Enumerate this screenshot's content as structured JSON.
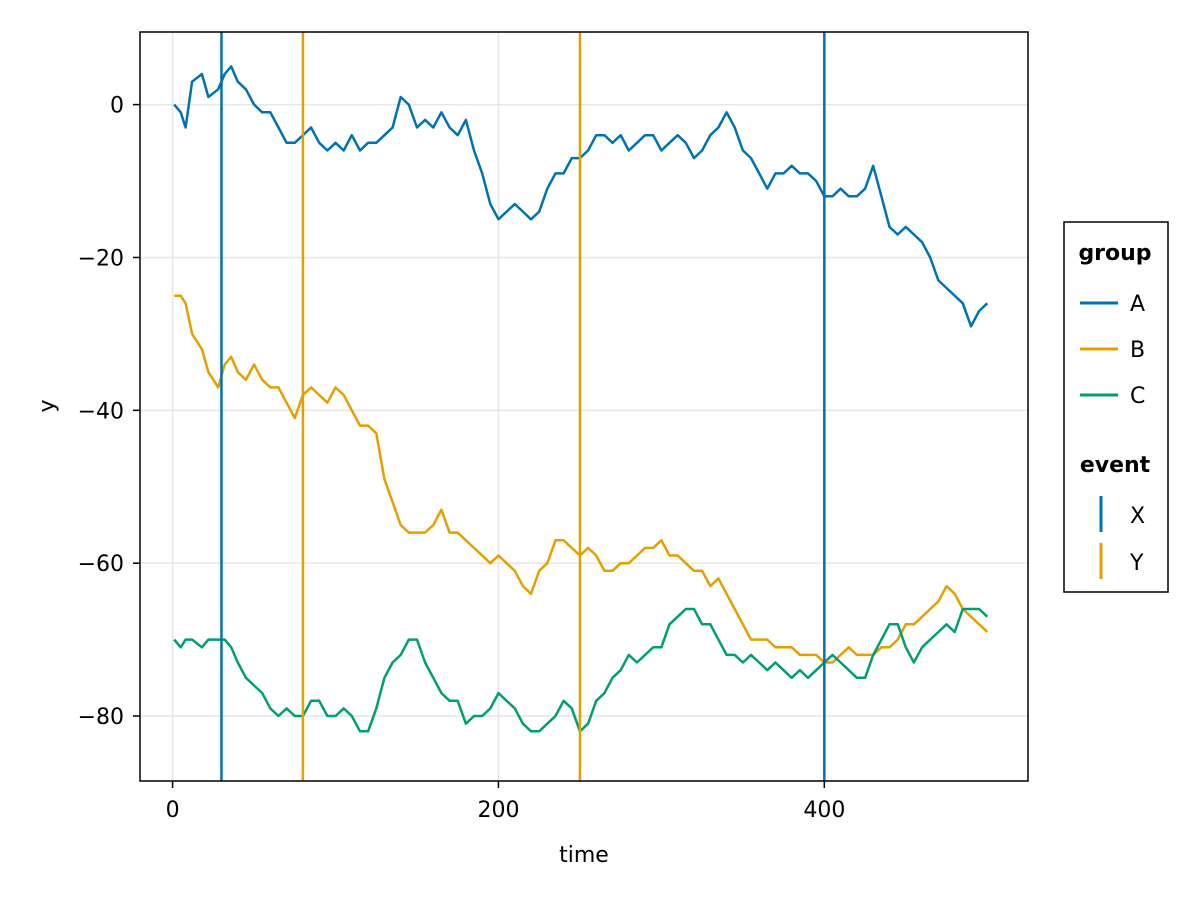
{
  "chart_data": {
    "type": "line",
    "title": "",
    "xlabel": "time",
    "ylabel": "y",
    "xlim": [
      -20,
      525
    ],
    "ylim": [
      -88.5,
      9.5
    ],
    "x_ticks": [
      0,
      200,
      400
    ],
    "y_ticks": [
      0,
      -20,
      -40,
      -60,
      -80
    ],
    "grid": true,
    "legend_position": "right",
    "legend_groups": [
      {
        "title": "group",
        "entries": [
          "A",
          "B",
          "C"
        ]
      },
      {
        "title": "event",
        "entries": [
          "X",
          "Y"
        ]
      }
    ],
    "series": [
      {
        "name": "A",
        "color": "#0072b2",
        "x": [
          1,
          5,
          8,
          12,
          18,
          22,
          28,
          32,
          36,
          40,
          45,
          50,
          55,
          60,
          65,
          70,
          75,
          80,
          85,
          90,
          95,
          100,
          105,
          110,
          115,
          120,
          125,
          130,
          135,
          140,
          145,
          150,
          155,
          160,
          165,
          170,
          175,
          180,
          185,
          190,
          195,
          200,
          205,
          210,
          215,
          220,
          225,
          230,
          235,
          240,
          245,
          250,
          255,
          260,
          265,
          270,
          275,
          280,
          285,
          290,
          295,
          300,
          305,
          310,
          315,
          320,
          325,
          330,
          335,
          340,
          345,
          350,
          355,
          360,
          365,
          370,
          375,
          380,
          385,
          390,
          395,
          400,
          405,
          410,
          415,
          420,
          425,
          430,
          435,
          440,
          445,
          450,
          455,
          460,
          465,
          470,
          475,
          480,
          485,
          490,
          495,
          500
        ],
        "values": [
          0,
          -1,
          -3,
          3,
          4,
          1,
          2,
          4,
          5,
          3,
          2,
          0,
          -1,
          -1,
          -3,
          -5,
          -5,
          -4,
          -3,
          -5,
          -6,
          -5,
          -6,
          -4,
          -6,
          -5,
          -5,
          -4,
          -3,
          1,
          0,
          -3,
          -2,
          -3,
          -1,
          -3,
          -4,
          -2,
          -6,
          -9,
          -13,
          -15,
          -14,
          -13,
          -14,
          -15,
          -14,
          -11,
          -9,
          -9,
          -7,
          -7,
          -6,
          -4,
          -4,
          -5,
          -4,
          -6,
          -5,
          -4,
          -4,
          -6,
          -5,
          -4,
          -5,
          -7,
          -6,
          -4,
          -3,
          -1,
          -3,
          -6,
          -7,
          -9,
          -11,
          -9,
          -9,
          -8,
          -9,
          -9,
          -10,
          -12,
          -12,
          -11,
          -12,
          -12,
          -11,
          -8,
          -12,
          -16,
          -17,
          -16,
          -17,
          -18,
          -20,
          -23,
          -24,
          -25,
          -26,
          -29,
          -27,
          -26
        ]
      },
      {
        "name": "B",
        "color": "#e69f00",
        "x": [
          1,
          5,
          8,
          12,
          18,
          22,
          28,
          32,
          36,
          40,
          45,
          50,
          55,
          60,
          65,
          70,
          75,
          80,
          85,
          90,
          95,
          100,
          105,
          110,
          115,
          120,
          125,
          130,
          135,
          140,
          145,
          150,
          155,
          160,
          165,
          170,
          175,
          180,
          185,
          190,
          195,
          200,
          205,
          210,
          215,
          220,
          225,
          230,
          235,
          240,
          245,
          250,
          255,
          260,
          265,
          270,
          275,
          280,
          285,
          290,
          295,
          300,
          305,
          310,
          315,
          320,
          325,
          330,
          335,
          340,
          345,
          350,
          355,
          360,
          365,
          370,
          375,
          380,
          385,
          390,
          395,
          400,
          405,
          410,
          415,
          420,
          425,
          430,
          435,
          440,
          445,
          450,
          455,
          460,
          465,
          470,
          475,
          480,
          485,
          490,
          495,
          500
        ],
        "values": [
          -25,
          -25,
          -26,
          -30,
          -32,
          -35,
          -37,
          -34,
          -33,
          -35,
          -36,
          -34,
          -36,
          -37,
          -37,
          -39,
          -41,
          -38,
          -37,
          -38,
          -39,
          -37,
          -38,
          -40,
          -42,
          -42,
          -43,
          -49,
          -52,
          -55,
          -56,
          -56,
          -56,
          -55,
          -53,
          -56,
          -56,
          -57,
          -58,
          -59,
          -60,
          -59,
          -60,
          -61,
          -63,
          -64,
          -61,
          -60,
          -57,
          -57,
          -58,
          -59,
          -58,
          -59,
          -61,
          -61,
          -60,
          -60,
          -59,
          -58,
          -58,
          -57,
          -59,
          -59,
          -60,
          -61,
          -61,
          -63,
          -62,
          -64,
          -66,
          -68,
          -70,
          -70,
          -70,
          -71,
          -71,
          -71,
          -72,
          -72,
          -72,
          -73,
          -73,
          -72,
          -71,
          -72,
          -72,
          -72,
          -71,
          -71,
          -70,
          -68,
          -68,
          -67,
          -66,
          -65,
          -63,
          -64,
          -66,
          -67,
          -68,
          -69
        ]
      },
      {
        "name": "C",
        "color": "#009e73",
        "x": [
          1,
          5,
          8,
          12,
          18,
          22,
          28,
          32,
          36,
          40,
          45,
          50,
          55,
          60,
          65,
          70,
          75,
          80,
          85,
          90,
          95,
          100,
          105,
          110,
          115,
          120,
          125,
          130,
          135,
          140,
          145,
          150,
          155,
          160,
          165,
          170,
          175,
          180,
          185,
          190,
          195,
          200,
          205,
          210,
          215,
          220,
          225,
          230,
          235,
          240,
          245,
          250,
          255,
          260,
          265,
          270,
          275,
          280,
          285,
          290,
          295,
          300,
          305,
          310,
          315,
          320,
          325,
          330,
          335,
          340,
          345,
          350,
          355,
          360,
          365,
          370,
          375,
          380,
          385,
          390,
          395,
          400,
          405,
          410,
          415,
          420,
          425,
          430,
          435,
          440,
          445,
          450,
          455,
          460,
          465,
          470,
          475,
          480,
          485,
          490,
          495,
          500
        ],
        "values": [
          -70,
          -71,
          -70,
          -70,
          -71,
          -70,
          -70,
          -70,
          -71,
          -73,
          -75,
          -76,
          -77,
          -79,
          -80,
          -79,
          -80,
          -80,
          -78,
          -78,
          -80,
          -80,
          -79,
          -80,
          -82,
          -82,
          -79,
          -75,
          -73,
          -72,
          -70,
          -70,
          -73,
          -75,
          -77,
          -78,
          -78,
          -81,
          -80,
          -80,
          -79,
          -77,
          -78,
          -79,
          -81,
          -82,
          -82,
          -81,
          -80,
          -78,
          -79,
          -82,
          -81,
          -78,
          -77,
          -75,
          -74,
          -72,
          -73,
          -72,
          -71,
          -71,
          -68,
          -67,
          -66,
          -66,
          -68,
          -68,
          -70,
          -72,
          -72,
          -73,
          -72,
          -73,
          -74,
          -73,
          -74,
          -75,
          -74,
          -75,
          -74,
          -73,
          -72,
          -73,
          -74,
          -75,
          -75,
          -72,
          -70,
          -68,
          -68,
          -71,
          -73,
          -71,
          -70,
          -69,
          -68,
          -69,
          -66,
          -66,
          -66,
          -67
        ]
      }
    ],
    "events": [
      {
        "name": "X",
        "color": "#0072b2",
        "x": 30
      },
      {
        "name": "Y",
        "color": "#e69f00",
        "x": 80
      },
      {
        "name": "Y",
        "color": "#e69f00",
        "x": 250
      },
      {
        "name": "X",
        "color": "#0072b2",
        "x": 400
      }
    ]
  }
}
